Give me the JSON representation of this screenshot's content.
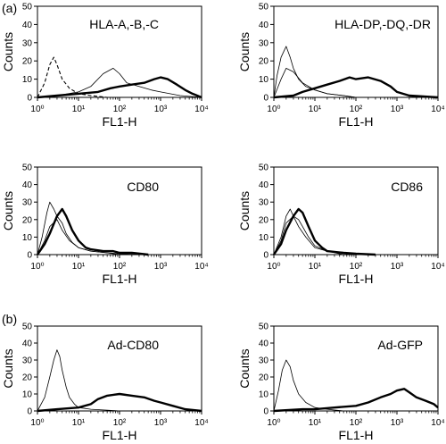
{
  "figure": {
    "marker_a": "(a)",
    "marker_b": "(b)"
  },
  "chart_data": [
    {
      "type": "line",
      "title": "HLA-A,-B,-C",
      "xlabel": "FL1-H",
      "ylabel": "Counts",
      "x_scale": "log",
      "xlim": [
        1,
        10000
      ],
      "ylim": [
        0,
        50
      ],
      "yticks": [
        0,
        10,
        20,
        30,
        40,
        50
      ],
      "xticks": [
        1,
        10,
        100,
        1000,
        10000
      ],
      "xtick_labels": [
        "10⁰",
        "10¹",
        "10²",
        "10³",
        "10⁴"
      ],
      "series": [
        {
          "style": "dashed",
          "x": [
            1,
            1.5,
            2,
            2.5,
            3,
            4,
            6,
            10,
            20,
            50,
            100
          ],
          "y": [
            0,
            8,
            18,
            22,
            18,
            10,
            5,
            2,
            1,
            0,
            0
          ]
        },
        {
          "style": "thin",
          "x": [
            1,
            3,
            10,
            20,
            40,
            70,
            100,
            150,
            300,
            600,
            1000,
            3000,
            10000
          ],
          "y": [
            0,
            1,
            3,
            6,
            13,
            16,
            13,
            8,
            6,
            4,
            3,
            1,
            0
          ]
        },
        {
          "style": "thick",
          "x": [
            1,
            3,
            10,
            30,
            60,
            100,
            200,
            400,
            700,
            1000,
            1500,
            2500,
            4000,
            6000,
            10000
          ],
          "y": [
            0,
            1,
            2,
            3,
            5,
            6,
            7,
            8,
            10,
            11,
            10,
            7,
            4,
            2,
            0
          ]
        }
      ]
    },
    {
      "type": "line",
      "title": "HLA-DP,-DQ,-DR",
      "xlabel": "FL1-H",
      "ylabel": "Counts",
      "x_scale": "log",
      "xlim": [
        1,
        10000
      ],
      "ylim": [
        0,
        50
      ],
      "yticks": [
        0,
        10,
        20,
        30,
        40,
        50
      ],
      "xticks": [
        1,
        10,
        100,
        1000,
        10000
      ],
      "xtick_labels": [
        "10⁰",
        "10¹",
        "10²",
        "10³",
        "10⁴"
      ],
      "series": [
        {
          "style": "thin",
          "x": [
            1,
            1.2,
            1.5,
            2,
            2.5,
            3,
            4,
            6,
            10,
            20,
            50,
            100
          ],
          "y": [
            0,
            12,
            22,
            28,
            22,
            16,
            10,
            6,
            4,
            2,
            1,
            0
          ]
        },
        {
          "style": "thin",
          "x": [
            1,
            1.5,
            2,
            3,
            5,
            10,
            20,
            50,
            100
          ],
          "y": [
            0,
            10,
            16,
            14,
            8,
            4,
            2,
            1,
            0
          ]
        },
        {
          "style": "thick",
          "x": [
            1,
            3,
            5,
            10,
            20,
            40,
            70,
            100,
            200,
            400,
            700,
            1000,
            2000,
            10000
          ],
          "y": [
            0,
            1,
            3,
            5,
            7,
            9,
            11,
            10,
            11,
            9,
            6,
            3,
            1,
            0
          ]
        }
      ]
    },
    {
      "type": "line",
      "title": "CD80",
      "xlabel": "FL1-H",
      "ylabel": "Counts",
      "x_scale": "log",
      "xlim": [
        1,
        10000
      ],
      "ylim": [
        0,
        50
      ],
      "yticks": [
        0,
        10,
        20,
        30,
        40,
        50
      ],
      "xticks": [
        1,
        10,
        100,
        1000,
        10000
      ],
      "xtick_labels": [
        "10⁰",
        "10¹",
        "10²",
        "10³",
        "10⁴"
      ],
      "series": [
        {
          "style": "thin",
          "x": [
            1,
            1.3,
            1.7,
            2,
            2.5,
            3,
            4,
            5,
            7,
            10,
            20,
            50,
            100,
            300
          ],
          "y": [
            0,
            10,
            24,
            30,
            26,
            22,
            18,
            12,
            7,
            4,
            2,
            1,
            0.5,
            0
          ]
        },
        {
          "style": "thin",
          "x": [
            1,
            1.5,
            2,
            3,
            4,
            6,
            10,
            20,
            50,
            100
          ],
          "y": [
            0,
            8,
            16,
            20,
            14,
            8,
            4,
            2,
            1,
            0
          ]
        },
        {
          "style": "thick",
          "x": [
            1,
            1.5,
            2,
            3,
            4,
            5,
            7,
            10,
            15,
            20,
            40,
            70,
            100,
            200,
            500
          ],
          "y": [
            0,
            6,
            12,
            22,
            26,
            22,
            14,
            8,
            4,
            3,
            2,
            2,
            1,
            1,
            0
          ]
        }
      ]
    },
    {
      "type": "line",
      "title": "CD86",
      "xlabel": "FL1-H",
      "ylabel": "Counts",
      "x_scale": "log",
      "xlim": [
        1,
        10000
      ],
      "ylim": [
        0,
        50
      ],
      "yticks": [
        0,
        10,
        20,
        30,
        40,
        50
      ],
      "xticks": [
        1,
        10,
        100,
        1000,
        10000
      ],
      "xtick_labels": [
        "10⁰",
        "10¹",
        "10²",
        "10³",
        "10⁴"
      ],
      "series": [
        {
          "style": "thin",
          "x": [
            1,
            1.5,
            2,
            2.5,
            3,
            4,
            5,
            7,
            10,
            20,
            50,
            100
          ],
          "y": [
            0,
            10,
            22,
            26,
            22,
            20,
            16,
            10,
            5,
            2,
            1,
            0
          ]
        },
        {
          "style": "thin",
          "x": [
            1,
            1.5,
            2,
            3,
            4,
            6,
            10,
            20,
            50
          ],
          "y": [
            0,
            8,
            18,
            22,
            16,
            10,
            4,
            2,
            0
          ]
        },
        {
          "style": "thick",
          "x": [
            1,
            1.5,
            2,
            3,
            4,
            5,
            7,
            10,
            15,
            20,
            50,
            100,
            300
          ],
          "y": [
            0,
            6,
            14,
            22,
            26,
            24,
            16,
            8,
            4,
            2,
            1,
            0.5,
            0
          ]
        }
      ]
    },
    {
      "type": "line",
      "title": "Ad-CD80",
      "xlabel": "FL1-H",
      "ylabel": "Counts",
      "x_scale": "log",
      "xlim": [
        1,
        10000
      ],
      "ylim": [
        0,
        50
      ],
      "yticks": [
        0,
        10,
        20,
        30,
        40,
        50
      ],
      "xticks": [
        1,
        10,
        100,
        1000,
        10000
      ],
      "xtick_labels": [
        "10⁰",
        "10¹",
        "10²",
        "10³",
        "10⁴"
      ],
      "series": [
        {
          "style": "thin",
          "x": [
            1,
            1.5,
            2,
            2.5,
            3,
            3.5,
            4,
            5,
            6,
            8,
            10,
            20,
            50,
            100
          ],
          "y": [
            0,
            8,
            20,
            30,
            36,
            32,
            24,
            14,
            8,
            4,
            2,
            1,
            0.5,
            0
          ]
        },
        {
          "style": "thick",
          "x": [
            1,
            3,
            10,
            20,
            30,
            50,
            100,
            200,
            400,
            700,
            1000,
            2000,
            4000,
            10000
          ],
          "y": [
            0,
            1,
            2,
            4,
            7,
            9,
            10,
            9,
            8,
            6,
            5,
            3,
            1,
            0
          ]
        }
      ]
    },
    {
      "type": "line",
      "title": "Ad-GFP",
      "xlabel": "FL1-H",
      "ylabel": "Counts",
      "x_scale": "log",
      "xlim": [
        1,
        10000
      ],
      "ylim": [
        0,
        50
      ],
      "yticks": [
        0,
        10,
        20,
        30,
        40,
        50
      ],
      "xticks": [
        1,
        10,
        100,
        1000,
        10000
      ],
      "xtick_labels": [
        "10⁰",
        "10¹",
        "10²",
        "10³",
        "10⁴"
      ],
      "series": [
        {
          "style": "thin",
          "x": [
            1,
            1.3,
            1.6,
            2,
            2.5,
            3,
            4,
            6,
            10,
            20,
            50
          ],
          "y": [
            0,
            12,
            24,
            30,
            26,
            18,
            10,
            5,
            2,
            1,
            0
          ]
        },
        {
          "style": "thick",
          "x": [
            1,
            5,
            10,
            30,
            100,
            200,
            400,
            700,
            1000,
            1500,
            2000,
            3000,
            5000,
            8000,
            10000
          ],
          "y": [
            0,
            1,
            1,
            2,
            3,
            5,
            8,
            10,
            12,
            13,
            11,
            8,
            6,
            4,
            2
          ]
        }
      ]
    }
  ]
}
